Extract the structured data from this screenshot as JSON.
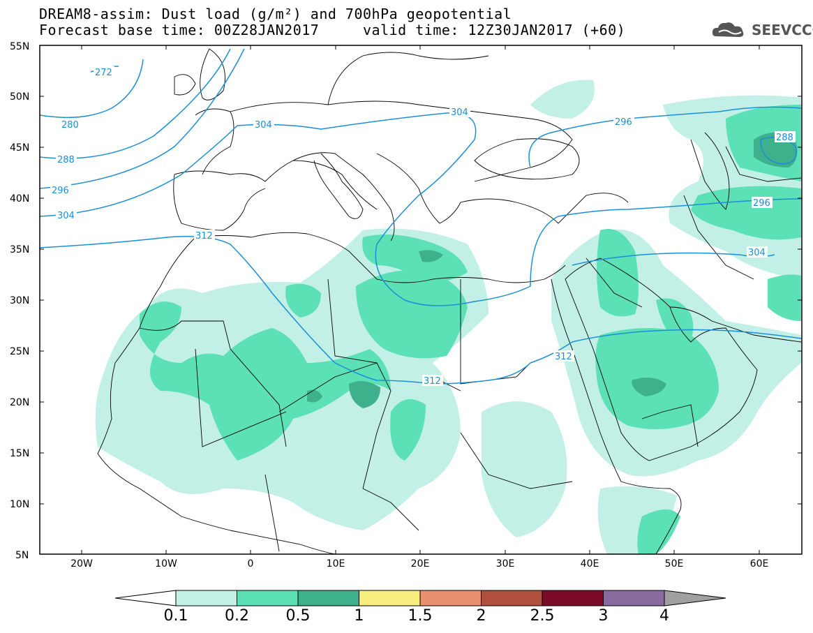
{
  "header": {
    "title_line1": "DREAM8-assim: Dust load (g/m²) and 700hPa geopotential",
    "title_line2": "Forecast base time: 00Z28JAN2017     valid time: 12Z30JAN2017 (+60)"
  },
  "logo": {
    "text": "SEEVCCC",
    "icon": "cloud-icon"
  },
  "map": {
    "lat_labels": [
      "55N",
      "50N",
      "45N",
      "40N",
      "35N",
      "30N",
      "25N",
      "20N",
      "15N",
      "10N",
      "5N"
    ],
    "lon_labels": [
      "20W",
      "10W",
      "0",
      "10E",
      "20E",
      "30E",
      "40E",
      "50E",
      "60E"
    ],
    "contour_labels": [
      "272",
      "280",
      "288",
      "296",
      "304",
      "312",
      "304",
      "304",
      "296",
      "288",
      "296",
      "304",
      "312",
      "312"
    ]
  },
  "colorbar": {
    "levels": [
      "0.1",
      "0.2",
      "0.5",
      "1",
      "1.5",
      "2",
      "2.5",
      "3",
      "4"
    ],
    "colors": [
      "#c2f0e6",
      "#5ce0b6",
      "#3fb08c",
      "#f7ee7f",
      "#ea9070",
      "#b04f3e",
      "#7d0a27",
      "#8b6aa0",
      "#a0a0a0"
    ]
  }
}
